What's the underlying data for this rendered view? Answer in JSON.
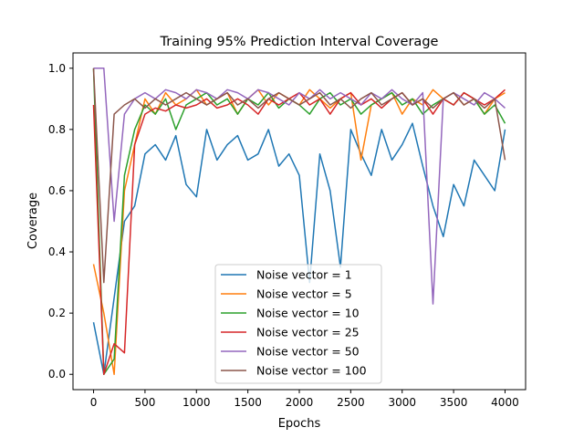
{
  "chart_data": {
    "type": "line",
    "title": "Training 95% Prediction Interval Coverage",
    "xlabel": "Epochs",
    "ylabel": "Coverage",
    "xlim": [
      -200,
      4200
    ],
    "ylim": [
      -0.05,
      1.05
    ],
    "xticks": [
      0,
      500,
      1000,
      1500,
      2000,
      2500,
      3000,
      3500,
      4000
    ],
    "yticks": [
      0.0,
      0.2,
      0.4,
      0.6,
      0.8,
      1.0
    ],
    "xtick_labels": [
      "0",
      "500",
      "1000",
      "1500",
      "2000",
      "2500",
      "3000",
      "3500",
      "4000"
    ],
    "ytick_labels": [
      "0.0",
      "0.2",
      "0.4",
      "0.6",
      "0.8",
      "1.0"
    ],
    "grid": false,
    "legend_position": "lower-center",
    "x": [
      0,
      100,
      200,
      300,
      400,
      500,
      600,
      700,
      800,
      900,
      1000,
      1100,
      1200,
      1300,
      1400,
      1500,
      1600,
      1700,
      1800,
      1900,
      2000,
      2100,
      2200,
      2300,
      2400,
      2500,
      2600,
      2700,
      2800,
      2900,
      3000,
      3100,
      3200,
      3300,
      3400,
      3500,
      3600,
      3700,
      3800,
      3900,
      4000
    ],
    "series": [
      {
        "name": "Noise vector = 1",
        "color": "#1f77b4",
        "values": [
          0.17,
          0.0,
          0.25,
          0.5,
          0.55,
          0.72,
          0.75,
          0.7,
          0.78,
          0.62,
          0.58,
          0.8,
          0.7,
          0.75,
          0.78,
          0.7,
          0.72,
          0.8,
          0.68,
          0.72,
          0.65,
          0.3,
          0.72,
          0.6,
          0.35,
          0.8,
          0.72,
          0.65,
          0.8,
          0.7,
          0.75,
          0.82,
          0.68,
          0.55,
          0.45,
          0.62,
          0.55,
          0.7,
          0.65,
          0.6,
          0.8
        ]
      },
      {
        "name": "Noise vector = 5",
        "color": "#ff7f0e",
        "values": [
          0.36,
          0.2,
          0.0,
          0.6,
          0.75,
          0.9,
          0.85,
          0.92,
          0.88,
          0.9,
          0.93,
          0.88,
          0.9,
          0.92,
          0.85,
          0.9,
          0.93,
          0.88,
          0.92,
          0.9,
          0.88,
          0.93,
          0.9,
          0.87,
          0.9,
          0.92,
          0.7,
          0.88,
          0.9,
          0.92,
          0.85,
          0.9,
          0.88,
          0.93,
          0.9,
          0.92,
          0.88,
          0.9,
          0.85,
          0.9,
          0.92
        ]
      },
      {
        "name": "Noise vector = 10",
        "color": "#2ca02c",
        "values": [
          1.0,
          0.0,
          0.05,
          0.65,
          0.8,
          0.88,
          0.85,
          0.9,
          0.8,
          0.88,
          0.9,
          0.92,
          0.88,
          0.9,
          0.85,
          0.9,
          0.88,
          0.92,
          0.87,
          0.9,
          0.88,
          0.85,
          0.9,
          0.92,
          0.88,
          0.9,
          0.85,
          0.88,
          0.9,
          0.92,
          0.88,
          0.9,
          0.85,
          0.88,
          0.9,
          0.88,
          0.92,
          0.9,
          0.85,
          0.88,
          0.82
        ]
      },
      {
        "name": "Noise vector = 25",
        "color": "#d62728",
        "values": [
          0.88,
          0.0,
          0.1,
          0.07,
          0.75,
          0.85,
          0.87,
          0.86,
          0.88,
          0.87,
          0.88,
          0.9,
          0.87,
          0.88,
          0.9,
          0.88,
          0.85,
          0.9,
          0.88,
          0.9,
          0.92,
          0.88,
          0.9,
          0.85,
          0.9,
          0.92,
          0.88,
          0.9,
          0.87,
          0.9,
          0.92,
          0.88,
          0.9,
          0.85,
          0.9,
          0.88,
          0.92,
          0.9,
          0.88,
          0.9,
          0.93
        ]
      },
      {
        "name": "Noise vector = 50",
        "color": "#9467bd",
        "values": [
          1.0,
          1.0,
          0.5,
          0.85,
          0.9,
          0.92,
          0.9,
          0.93,
          0.92,
          0.9,
          0.93,
          0.92,
          0.9,
          0.93,
          0.92,
          0.9,
          0.93,
          0.92,
          0.9,
          0.88,
          0.92,
          0.9,
          0.93,
          0.9,
          0.92,
          0.9,
          0.88,
          0.92,
          0.9,
          0.93,
          0.9,
          0.88,
          0.92,
          0.23,
          0.9,
          0.92,
          0.9,
          0.88,
          0.92,
          0.9,
          0.87
        ]
      },
      {
        "name": "Noise vector = 100",
        "color": "#8c564b",
        "values": [
          1.0,
          0.3,
          0.85,
          0.88,
          0.9,
          0.87,
          0.9,
          0.88,
          0.9,
          0.92,
          0.9,
          0.88,
          0.9,
          0.92,
          0.88,
          0.9,
          0.87,
          0.9,
          0.92,
          0.9,
          0.88,
          0.9,
          0.92,
          0.88,
          0.9,
          0.87,
          0.9,
          0.92,
          0.88,
          0.9,
          0.92,
          0.88,
          0.9,
          0.87,
          0.9,
          0.92,
          0.88,
          0.9,
          0.87,
          0.9,
          0.7
        ]
      }
    ]
  }
}
